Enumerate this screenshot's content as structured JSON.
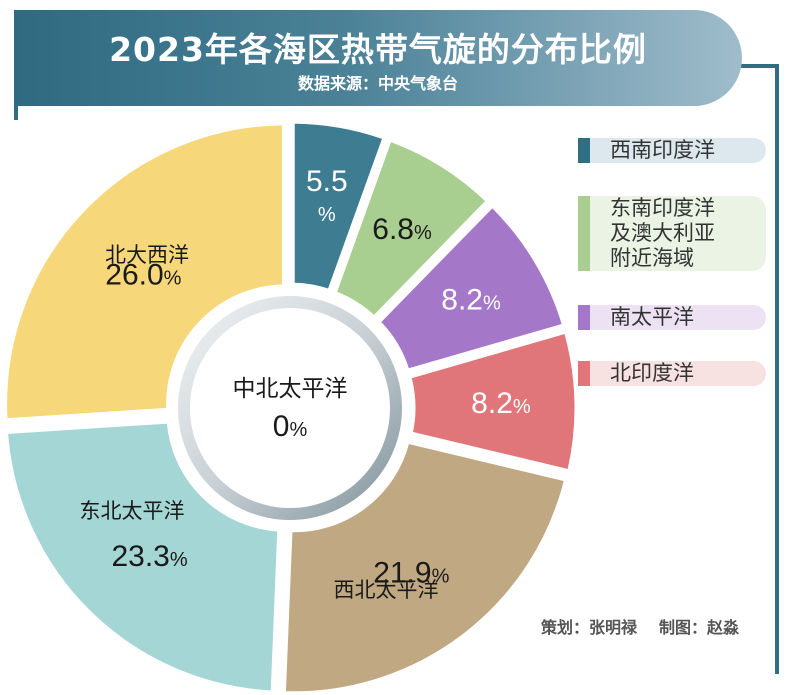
{
  "header": {
    "title": "2023年各海区热带气旋的分布比例",
    "source": "数据来源：中央气象台"
  },
  "chart_data": {
    "type": "pie",
    "style": "donut",
    "title": "2023年各海区热带气旋的分布比例",
    "slices": [
      {
        "name": "西南印度洋",
        "value": 5.5,
        "value_text": "5.5",
        "color": "#3d7c91",
        "label_color": "#ffffff"
      },
      {
        "name": "东南印度洋及澳大利亚附近海域",
        "value": 6.8,
        "value_text": "6.8",
        "color": "#a8cf8f",
        "label_color": "#1a1a1a"
      },
      {
        "name": "南太平洋",
        "value": 8.2,
        "value_text": "8.2",
        "color": "#a577c9",
        "label_color": "#ffffff"
      },
      {
        "name": "北印度洋",
        "value": 8.2,
        "value_text": "8.2",
        "color": "#e0767a",
        "label_color": "#ffffff"
      },
      {
        "name": "西北太平洋",
        "value": 21.9,
        "value_text": "21.9",
        "color": "#c0a882",
        "label_color": "#1a1a1a"
      },
      {
        "name": "东北太平洋",
        "value": 23.3,
        "value_text": "23.3",
        "color": "#a3d6d4",
        "label_color": "#1a1a1a"
      },
      {
        "name": "北大西洋",
        "value": 26.0,
        "value_text": "26.0",
        "color": "#f6d77a",
        "label_color": "#1a1a1a"
      }
    ],
    "center": {
      "name": "中北太平洋",
      "value": 0,
      "value_text": "0"
    },
    "unit": "%"
  },
  "legend": {
    "items": [
      {
        "label": "西南印度洋",
        "color": "#2f6f82",
        "bg": "#dde8ee"
      },
      {
        "label": "东南印度洋\n及澳大利亚\n附近海域",
        "color": "#a8cf8f",
        "bg": "#eaf3e4"
      },
      {
        "label": "南太平洋",
        "color": "#a577c9",
        "bg": "#ede2f4"
      },
      {
        "label": "北印度洋",
        "color": "#e0767a",
        "bg": "#f8e1e1"
      }
    ]
  },
  "credits": {
    "planning": "策划：张明禄",
    "drawing": "制图：赵淼"
  }
}
